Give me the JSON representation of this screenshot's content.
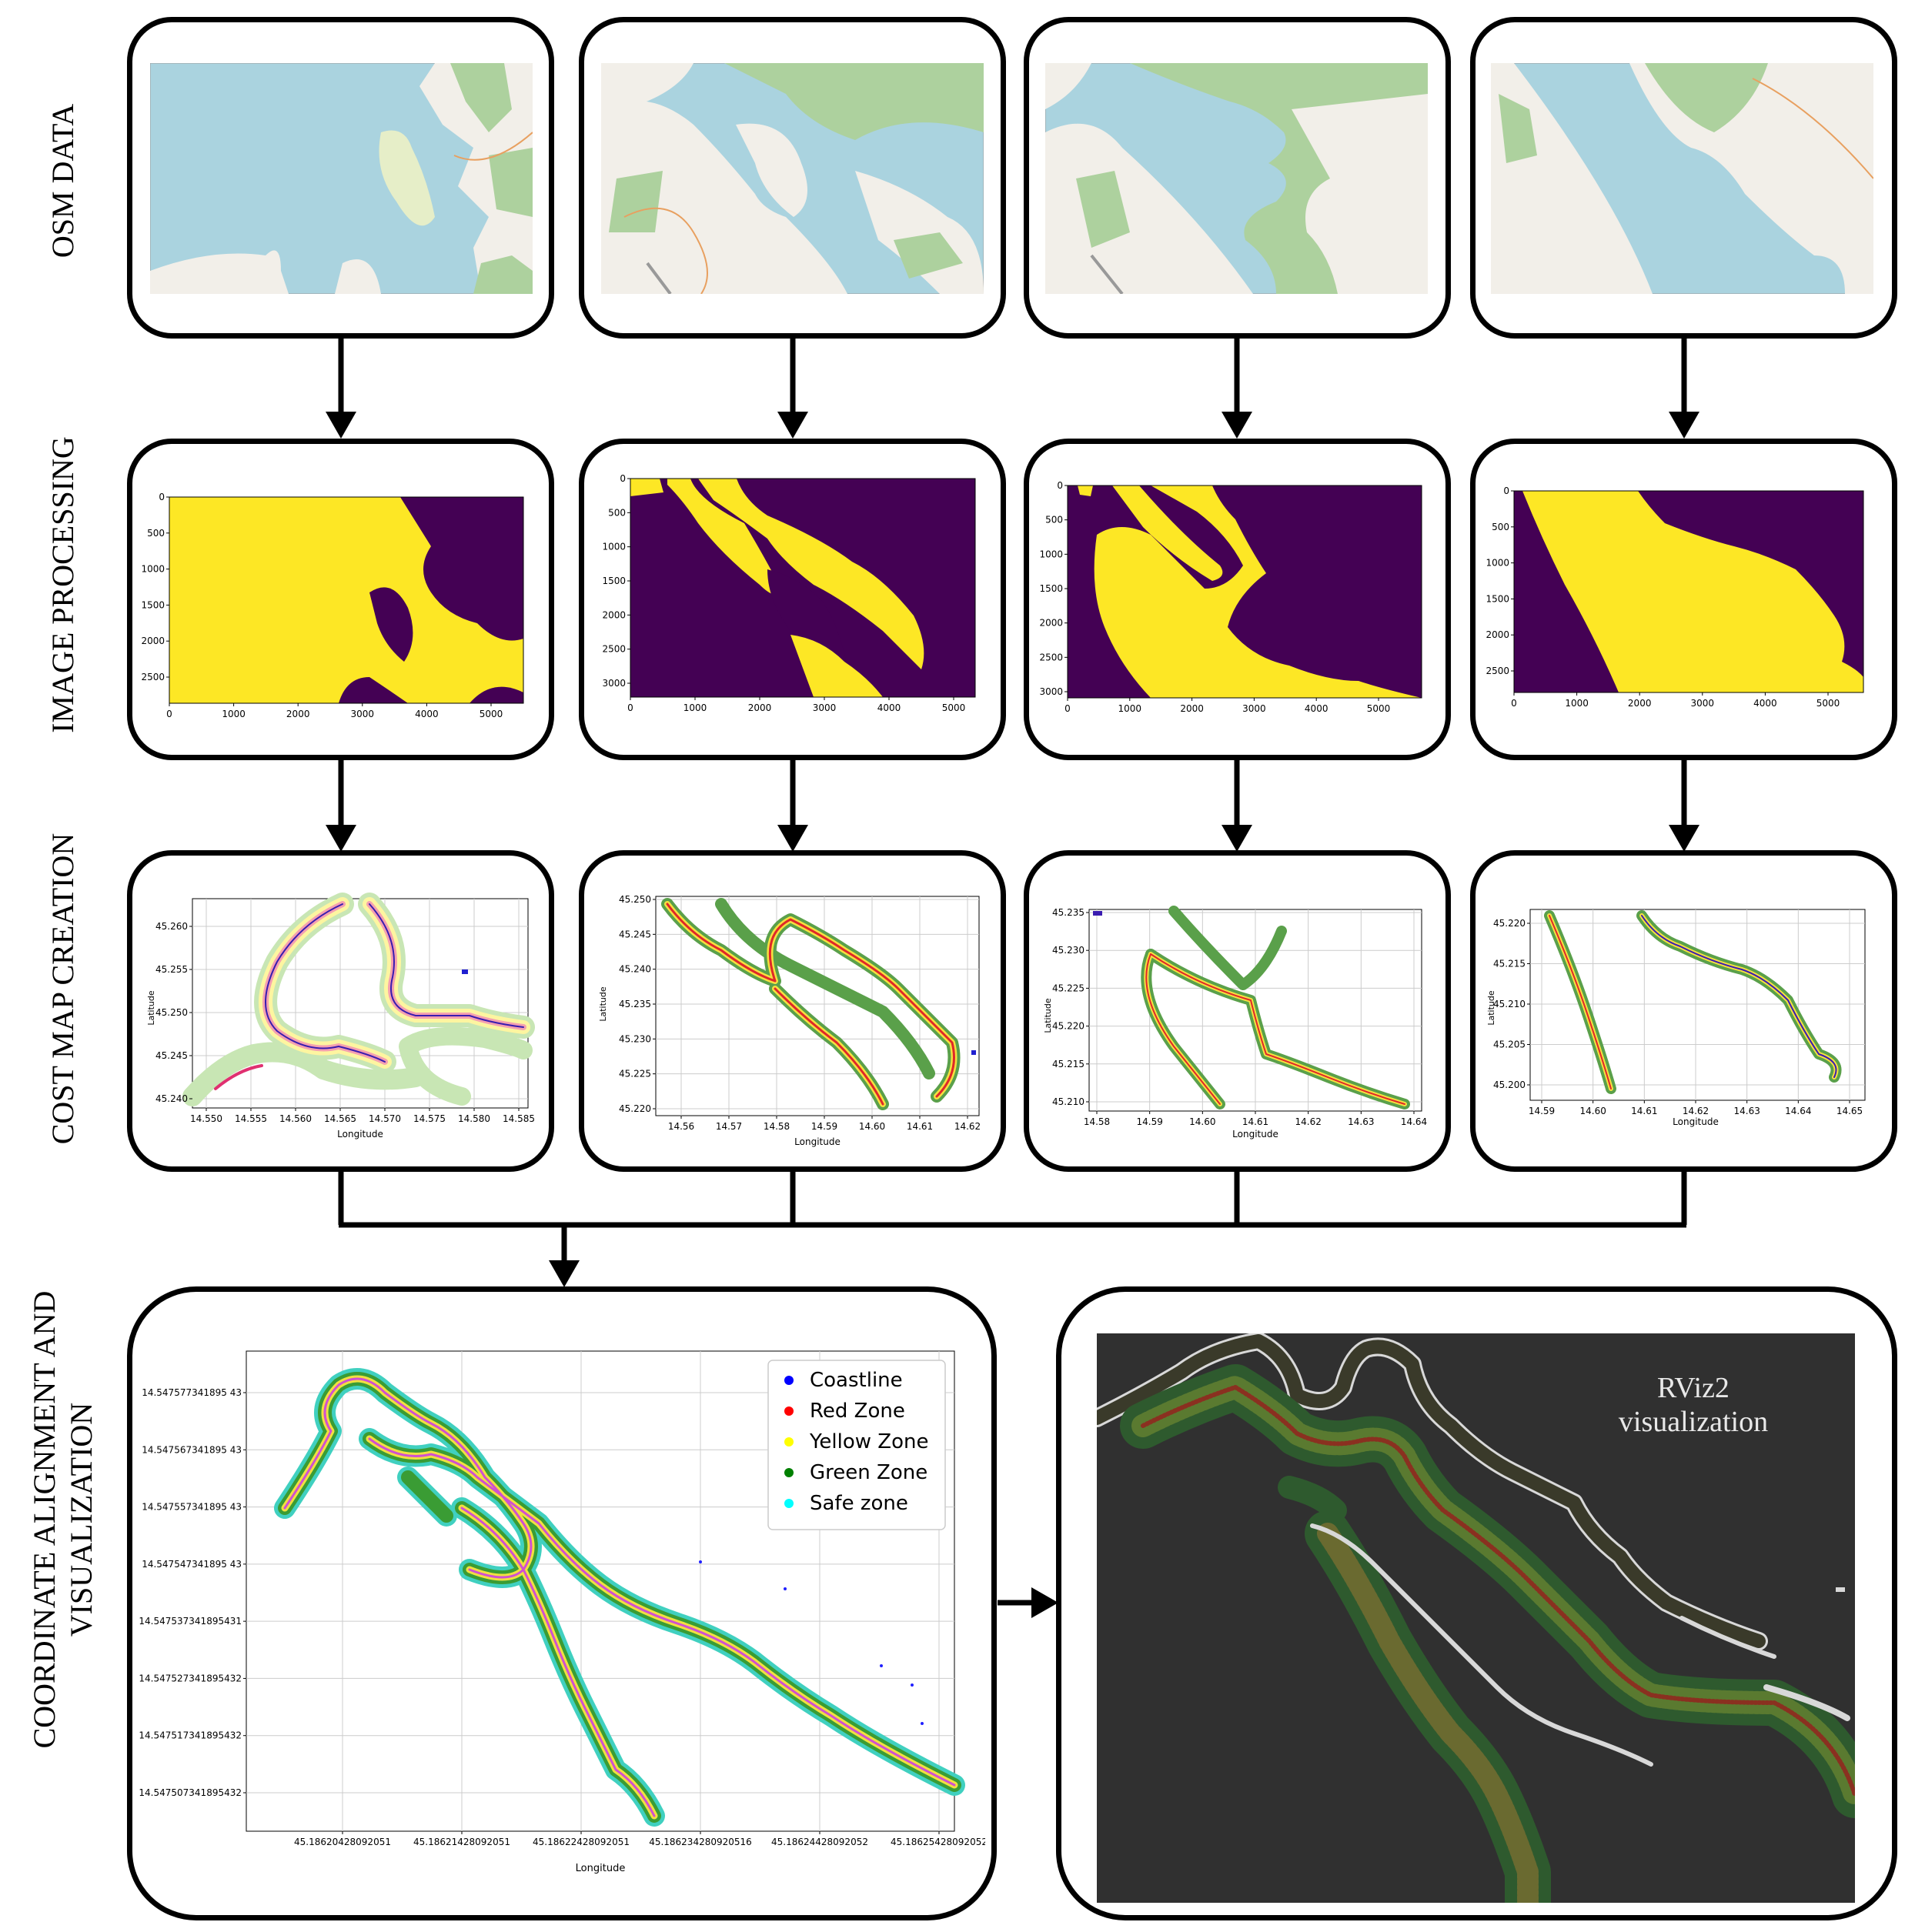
{
  "row_labels": {
    "osm": "OSM DATA",
    "image_processing": "IMAGE PROCESSING",
    "cost_map": "COST MAP CREATION",
    "alignment_line1": "COORDINATE ALIGNMENT AND",
    "alignment_line2": "VISUALIZATION"
  },
  "colors": {
    "water": "#aad3df",
    "land": "#f2efe9",
    "forest": "#add19e",
    "viridis_dark": "#440154",
    "viridis_yellow": "#fde725",
    "coastline": "#0000ff",
    "red_zone": "#ff0000",
    "yellow_zone": "#ffff00",
    "green_zone": "#008000",
    "safe_zone": "#00ffff",
    "rviz_bg": "#303030"
  },
  "image_processing": [
    {
      "x_ticks": [
        "0",
        "1000",
        "2000",
        "3000",
        "4000",
        "5000"
      ],
      "y_ticks": [
        "0",
        "500",
        "1000",
        "1500",
        "2000",
        "2500"
      ]
    },
    {
      "x_ticks": [
        "0",
        "1000",
        "2000",
        "3000",
        "4000",
        "5000"
      ],
      "y_ticks": [
        "0",
        "500",
        "1000",
        "1500",
        "2000",
        "2500",
        "3000"
      ]
    },
    {
      "x_ticks": [
        "0",
        "1000",
        "2000",
        "3000",
        "4000",
        "5000"
      ],
      "y_ticks": [
        "0",
        "500",
        "1000",
        "1500",
        "2000",
        "2500",
        "3000"
      ]
    },
    {
      "x_ticks": [
        "0",
        "1000",
        "2000",
        "3000",
        "4000",
        "5000"
      ],
      "y_ticks": [
        "0",
        "500",
        "1000",
        "1500",
        "2000",
        "2500"
      ]
    }
  ],
  "cost_maps": [
    {
      "xlabel": "Longitude",
      "ylabel": "Latitude",
      "x_ticks": [
        "14.550",
        "14.555",
        "14.560",
        "14.565",
        "14.570",
        "14.575",
        "14.580",
        "14.585"
      ],
      "y_ticks": [
        "45.260",
        "45.255",
        "45.250",
        "45.245",
        "45.240"
      ]
    },
    {
      "xlabel": "Longitude",
      "ylabel": "Latitude",
      "x_ticks": [
        "14.56",
        "14.57",
        "14.58",
        "14.59",
        "14.60",
        "14.61",
        "14.62"
      ],
      "y_ticks": [
        "45.250",
        "45.245",
        "45.240",
        "45.235",
        "45.230",
        "45.225",
        "45.220"
      ]
    },
    {
      "xlabel": "Longitude",
      "ylabel": "Latitude",
      "x_ticks": [
        "14.58",
        "14.59",
        "14.60",
        "14.61",
        "14.62",
        "14.63",
        "14.64"
      ],
      "y_ticks": [
        "45.235",
        "45.230",
        "45.225",
        "45.220",
        "45.215",
        "45.210"
      ]
    },
    {
      "xlabel": "Longitude",
      "ylabel": "Latitude",
      "x_ticks": [
        "14.59",
        "14.60",
        "14.61",
        "14.62",
        "14.63",
        "14.64",
        "14.65"
      ],
      "y_ticks": [
        "45.220",
        "45.215",
        "45.210",
        "45.205",
        "45.200"
      ]
    }
  ],
  "final_plot": {
    "xlabel": "Longitude",
    "x_ticks": [
      "45.18620428092051",
      "45.18621428092051",
      "45.18622428092051",
      "45.186234280920516",
      "45.18624428092052",
      "45.18625428092052"
    ],
    "y_ticks": [
      "14.547577341895 43",
      "14.547567341895 43",
      "14.547557341895 43",
      "14.547547341895 43",
      "14.547537341895431",
      "14.547527341895432",
      "14.547517341895432",
      "14.547507341895432"
    ],
    "legend": [
      {
        "label": "Coastline",
        "color": "#0000ff"
      },
      {
        "label": "Red Zone",
        "color": "#ff0000"
      },
      {
        "label": "Yellow Zone",
        "color": "#ffff00"
      },
      {
        "label": "Green Zone",
        "color": "#008000"
      },
      {
        "label": "Safe zone",
        "color": "#00ffff"
      }
    ]
  },
  "rviz": {
    "line1": "RViz2",
    "line2": "visualization"
  }
}
